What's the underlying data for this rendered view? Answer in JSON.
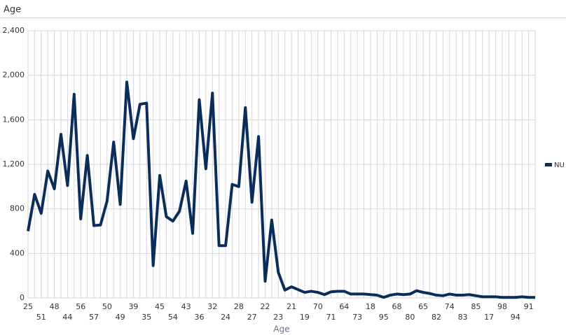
{
  "chart_data": {
    "type": "line",
    "title": "Age",
    "x_label": "Age",
    "categories": [
      "25",
      null,
      "51",
      null,
      "48",
      null,
      "44",
      null,
      "56",
      null,
      "57",
      null,
      "50",
      null,
      "49",
      null,
      "39",
      null,
      "35",
      null,
      "45",
      null,
      "54",
      null,
      "43",
      null,
      "36",
      null,
      "32",
      null,
      "24",
      null,
      "28",
      null,
      "27",
      null,
      "22",
      null,
      "23",
      null,
      "21",
      null,
      "19",
      null,
      "70",
      null,
      "71",
      null,
      "64",
      null,
      "73",
      null,
      "18",
      null,
      "95",
      null,
      "68",
      null,
      "80",
      null,
      "65",
      null,
      "82",
      null,
      "74",
      null,
      "83",
      null,
      "85",
      null,
      "17",
      null,
      "98",
      null,
      "94",
      null,
      "91",
      null
    ],
    "series": [
      {
        "name": "NU",
        "color": "#0b2d5a",
        "values": [
          600,
          930,
          760,
          1140,
          980,
          1470,
          1010,
          1830,
          710,
          1280,
          650,
          655,
          870,
          1400,
          840,
          1940,
          1430,
          1740,
          1750,
          290,
          1100,
          730,
          690,
          780,
          1050,
          580,
          1780,
          1160,
          1840,
          470,
          470,
          1020,
          1000,
          1710,
          860,
          1450,
          150,
          700,
          230,
          70,
          100,
          75,
          50,
          60,
          50,
          30,
          55,
          60,
          60,
          35,
          35,
          35,
          30,
          25,
          5,
          25,
          35,
          30,
          35,
          65,
          50,
          40,
          25,
          20,
          35,
          25,
          25,
          30,
          20,
          10,
          10,
          10,
          5,
          5,
          5,
          10,
          5,
          5
        ]
      }
    ],
    "ylim": [
      0,
      2400
    ],
    "yticks": [
      0,
      400,
      800,
      {
        "value": 1200,
        "label": "1,200"
      },
      {
        "value": 1600,
        "label": "1,600"
      },
      {
        "value": 2000,
        "label": "2,000"
      },
      {
        "value": 2400,
        "label": "2,400"
      }
    ],
    "grid": true,
    "legend": "right"
  }
}
